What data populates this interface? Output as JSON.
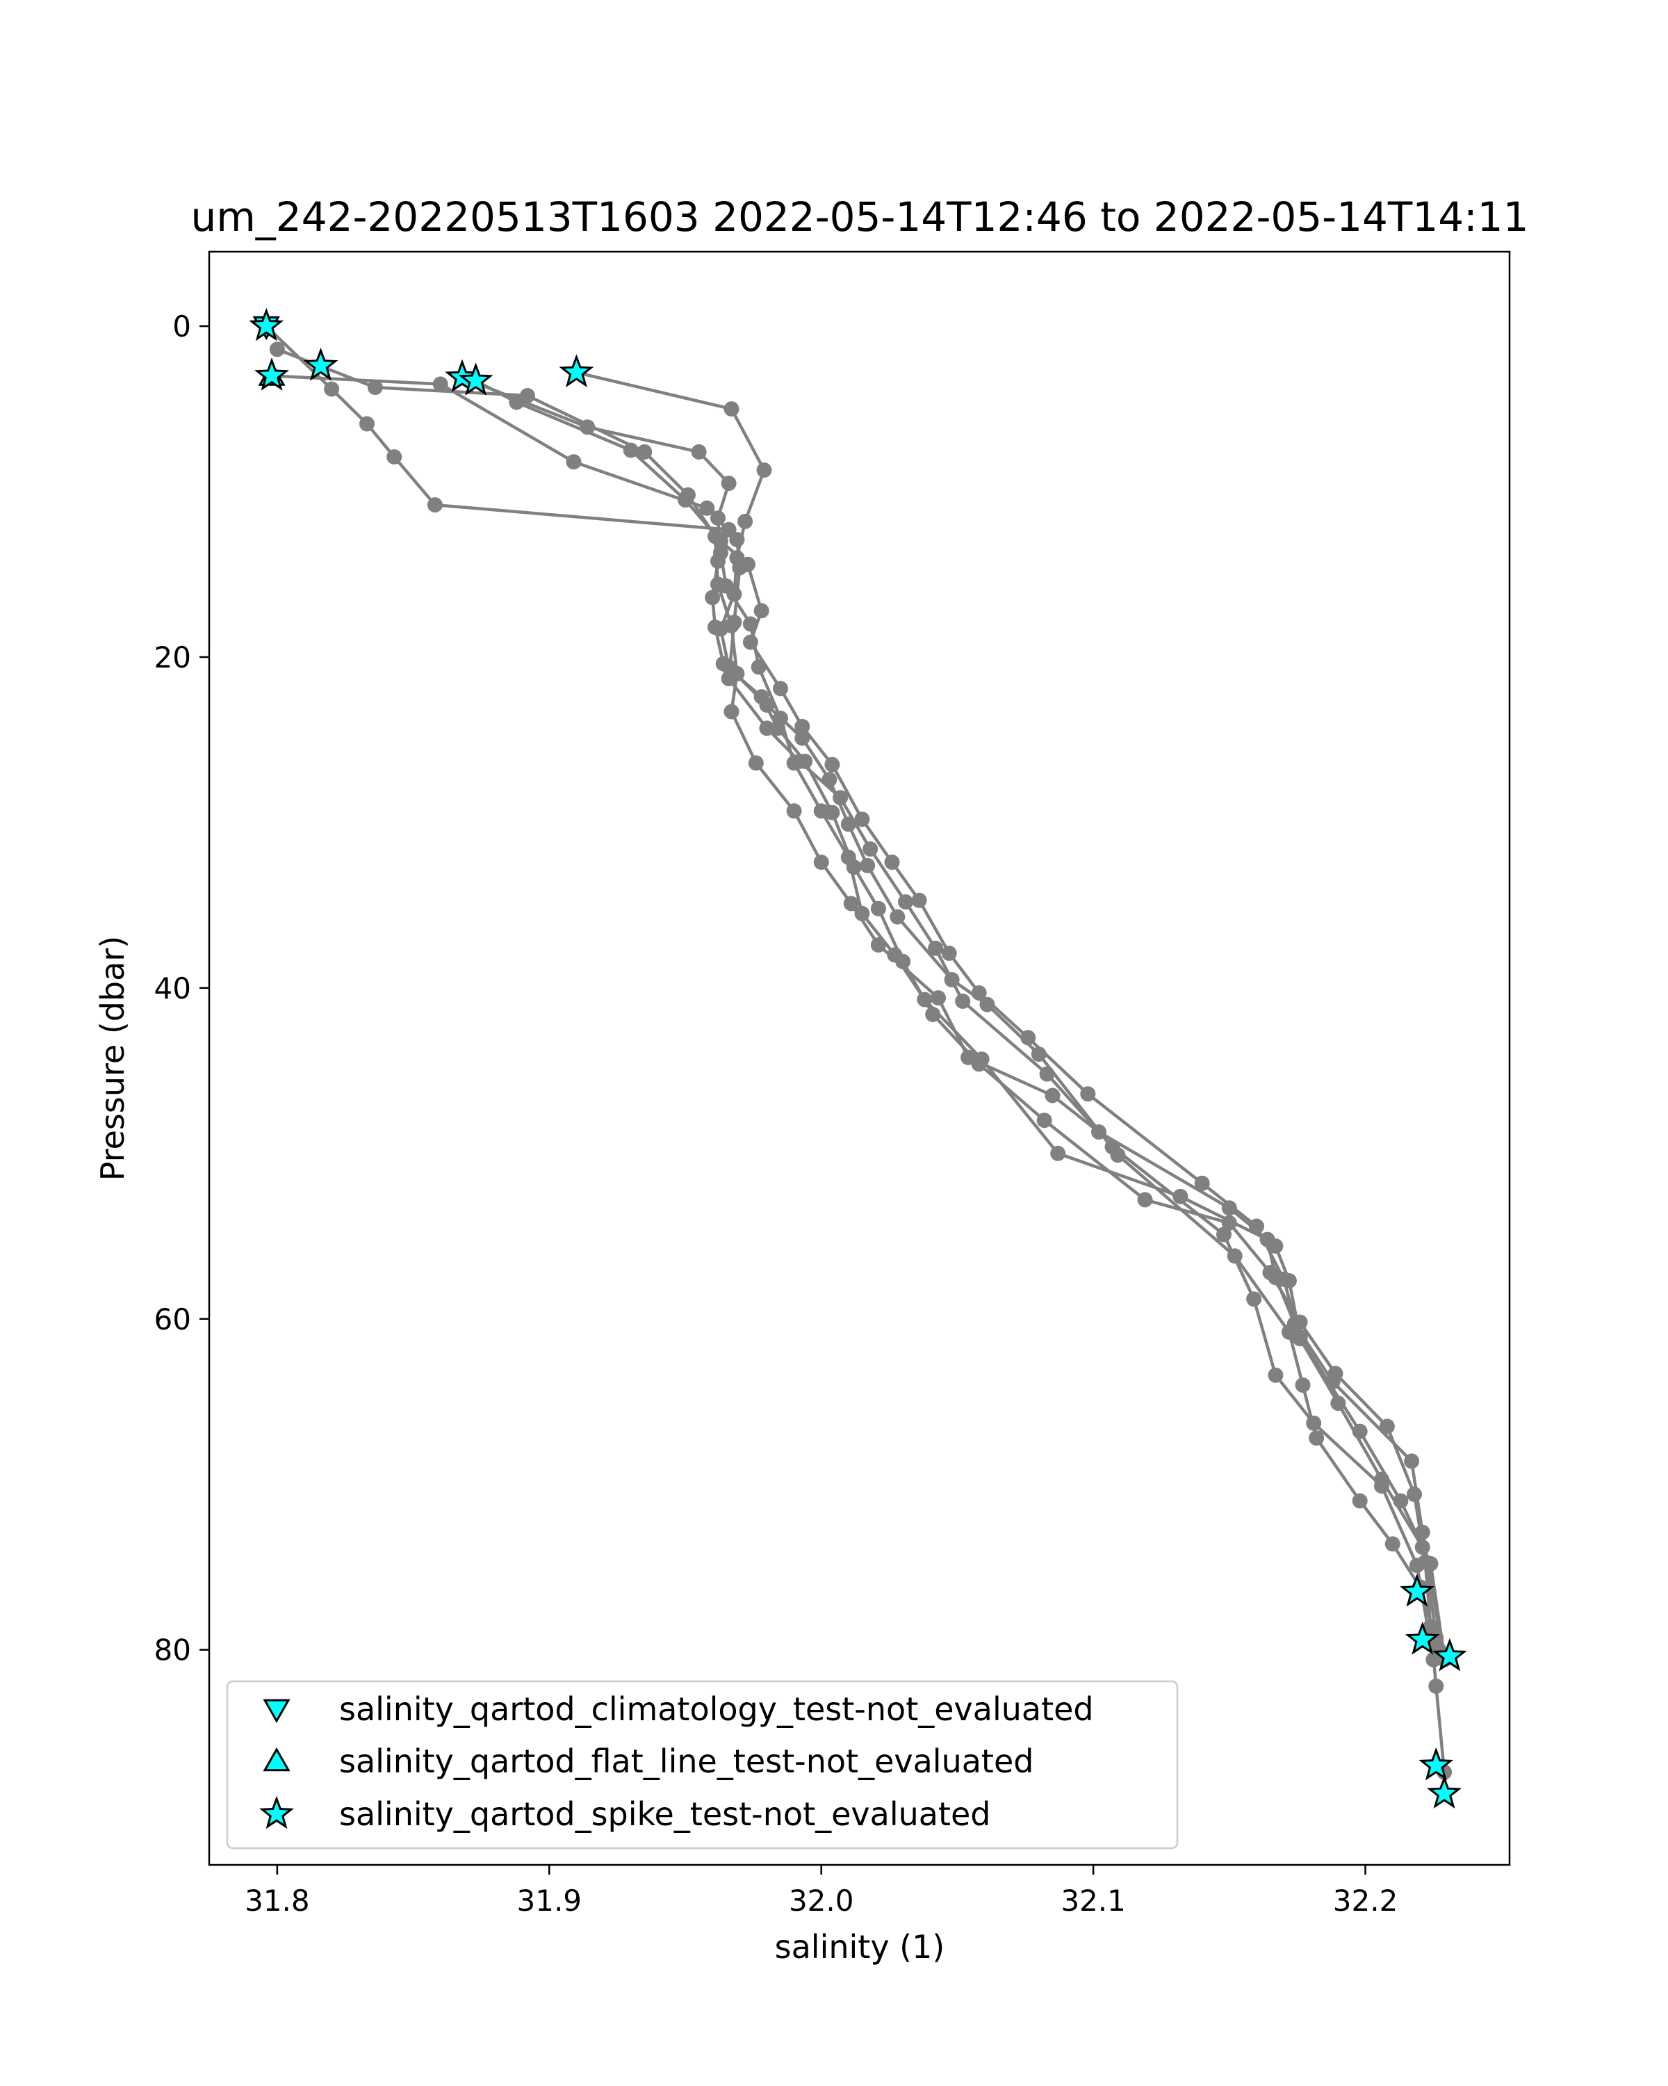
{
  "chart_data": {
    "type": "line",
    "title": "um_242-20220513T1603 2022-05-14T12:46 to 2022-05-14T14:11",
    "xlabel": "salinity (1)",
    "ylabel": "Pressure (dbar)",
    "xlim": [
      31.775,
      32.253
    ],
    "ylim": [
      93.0,
      -4.5
    ],
    "y_inverted": true,
    "xticks": [
      31.8,
      31.9,
      32.0,
      32.1,
      32.2
    ],
    "xtick_labels": [
      "31.8",
      "31.9",
      "32.0",
      "32.1",
      "32.2"
    ],
    "yticks": [
      0,
      20,
      40,
      60,
      80
    ],
    "ytick_labels": [
      "0",
      "20",
      "40",
      "60",
      "80"
    ],
    "grid": false,
    "line_color": "#808080",
    "marker_color": "#00ffff",
    "legend_position": "lower-left",
    "legend": [
      {
        "label": "salinity_qartod_climatology_test-not_evaluated",
        "marker": "triangle-down"
      },
      {
        "label": "salinity_qartod_flat_line_test-not_evaluated",
        "marker": "triangle-up"
      },
      {
        "label": "salinity_qartod_spike_test-not_evaluated",
        "marker": "star"
      }
    ],
    "series": [
      {
        "x": [
          31.796,
          31.82,
          31.833,
          31.843,
          31.858,
          31.966,
          31.962,
          31.96,
          31.961,
          31.964,
          31.978,
          31.984,
          31.994,
          32.004,
          32.012,
          32.021,
          32.03,
          32.041,
          32.058,
          32.082,
          32.119,
          32.15,
          32.165,
          32.176,
          32.189,
          32.208,
          32.218,
          32.222,
          32.224,
          32.226,
          32.229
        ],
        "y": [
          0.0,
          3.8,
          5.9,
          7.9,
          10.8,
          12.3,
          14.2,
          16.4,
          18.2,
          20.4,
          22.4,
          24.3,
          26.3,
          29.4,
          32.7,
          35.2,
          38.4,
          41.6,
          44.6,
          48.0,
          52.8,
          54.2,
          57.2,
          60.2,
          63.3,
          66.5,
          70.6,
          74.7,
          78.6,
          82.2,
          87.4
        ]
      },
      {
        "x": [
          31.8,
          31.836,
          31.892,
          31.935,
          31.951,
          31.961,
          31.962,
          31.967,
          31.969,
          31.967,
          31.976,
          31.99,
          32.0,
          32.011,
          32.021,
          32.043,
          32.054,
          32.085,
          32.102,
          32.15,
          32.167,
          32.172,
          32.176,
          32.198,
          32.213,
          32.224,
          32.229
        ],
        "y": [
          1.4,
          3.7,
          4.2,
          7.6,
          10.2,
          12.7,
          15.6,
          18.1,
          21.0,
          23.3,
          26.4,
          29.3,
          32.4,
          34.9,
          37.4,
          40.6,
          44.2,
          46.5,
          48.7,
          53.3,
          55.6,
          57.7,
          61.1,
          66.8,
          71.0,
          74.8,
          80.4
        ]
      },
      {
        "x": [
          31.868,
          31.914,
          31.955,
          31.966,
          31.962,
          31.963,
          31.965,
          31.974,
          31.977,
          31.985,
          31.99,
          32.0,
          32.01,
          32.015,
          32.027,
          32.038,
          32.059,
          32.087,
          32.132,
          32.164,
          32.167,
          32.174,
          32.188,
          32.217,
          32.221,
          32.229
        ],
        "y": [
          3.1,
          6.1,
          7.6,
          9.5,
          11.6,
          13.7,
          15.7,
          18.0,
          20.6,
          23.7,
          26.4,
          29.3,
          32.1,
          35.5,
          38.0,
          40.7,
          44.3,
          50.0,
          52.6,
          55.2,
          57.5,
          60.3,
          63.8,
          68.6,
          72.9,
          80.6
        ]
      },
      {
        "x": [
          31.91,
          31.967,
          31.979,
          31.972,
          31.969,
          31.968,
          31.963,
          31.966,
          31.98,
          31.993,
          32.003,
          32.01,
          32.017,
          32.028,
          32.048,
          32.061,
          32.08,
          32.109,
          32.152,
          32.172,
          32.177,
          32.182,
          32.198,
          32.21,
          32.22,
          32.226
        ],
        "y": [
          2.8,
          5.0,
          8.7,
          11.8,
          14.0,
          16.2,
          18.3,
          20.6,
          22.9,
          24.9,
          27.4,
          30.1,
          32.6,
          35.7,
          39.5,
          41.0,
          44.0,
          50.1,
          56.2,
          60.8,
          64.0,
          67.2,
          71.0,
          73.6,
          76.2,
          79.3
        ]
      },
      {
        "x": [
          31.873,
          31.888,
          31.93,
          31.95,
          31.963,
          31.973,
          31.978,
          31.974,
          31.985,
          31.993,
          32.004,
          32.015,
          32.026,
          32.036,
          32.047,
          32.058,
          32.076,
          32.098,
          32.14,
          32.16,
          32.17,
          32.176,
          32.19,
          32.206,
          32.221,
          32.227
        ],
        "y": [
          3.3,
          4.6,
          7.5,
          10.5,
          13.0,
          14.4,
          17.2,
          19.1,
          21.9,
          24.2,
          26.5,
          29.8,
          32.4,
          34.7,
          37.9,
          40.3,
          43.0,
          46.4,
          51.8,
          54.4,
          57.6,
          61.2,
          65.1,
          69.7,
          73.8,
          80.0
        ]
      },
      {
        "x": [
          31.798,
          31.86,
          31.909,
          31.958,
          31.969,
          31.97,
          31.968,
          31.966,
          31.98,
          31.992,
          32.007,
          32.018,
          32.031,
          32.042,
          32.052,
          32.083,
          32.107,
          32.148,
          32.159,
          32.167,
          32.181,
          32.206,
          32.219,
          32.225
        ],
        "y": [
          3.0,
          3.5,
          8.2,
          11.0,
          12.9,
          14.6,
          17.9,
          21.3,
          24.3,
          26.3,
          28.5,
          31.6,
          34.8,
          37.6,
          40.8,
          45.2,
          49.6,
          54.9,
          58.8,
          63.4,
          66.3,
          70.1,
          74.9,
          80.6
        ]
      }
    ],
    "flagged_points": {
      "climatology_test_not_evaluated": {
        "x": [
          31.796
        ],
        "y": [
          0.0
        ]
      },
      "flat_line_test_not_evaluated": {
        "x": [
          31.798
        ],
        "y": [
          3.0
        ]
      },
      "spike_test_not_evaluated": {
        "x": [
          31.796,
          31.798,
          31.816,
          31.868,
          31.873,
          31.91,
          32.219,
          32.221,
          32.231,
          32.226,
          32.229
        ],
        "y": [
          0.0,
          3.0,
          2.4,
          3.1,
          3.3,
          2.8,
          76.5,
          79.4,
          80.4,
          87.0,
          88.7
        ]
      }
    }
  }
}
